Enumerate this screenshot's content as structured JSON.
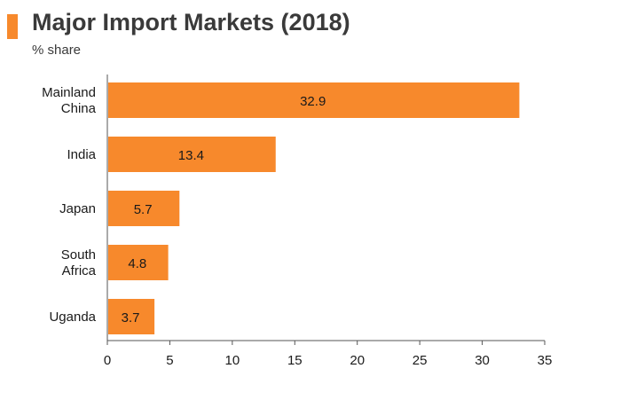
{
  "header": {
    "title": "Major Import Markets (2018)",
    "subtitle": "% share"
  },
  "colors": {
    "bar": "#f7892c",
    "accent": "#f7892c",
    "axis": "#555555"
  },
  "chart_data": {
    "type": "bar",
    "orientation": "horizontal",
    "title": "Major Import Markets (2018)",
    "subtitle": "% share",
    "categories": [
      [
        "Mainland",
        "China"
      ],
      [
        "India"
      ],
      [
        "Japan"
      ],
      [
        "South",
        "Africa"
      ],
      [
        "Uganda"
      ]
    ],
    "values": [
      32.9,
      13.4,
      5.7,
      4.8,
      3.7
    ],
    "xlabel": "",
    "ylabel": "",
    "xlim": [
      0,
      35
    ],
    "xticks": [
      0,
      5,
      10,
      15,
      20,
      25,
      30,
      35
    ],
    "grid": false,
    "legend": false,
    "data_labels": true
  }
}
